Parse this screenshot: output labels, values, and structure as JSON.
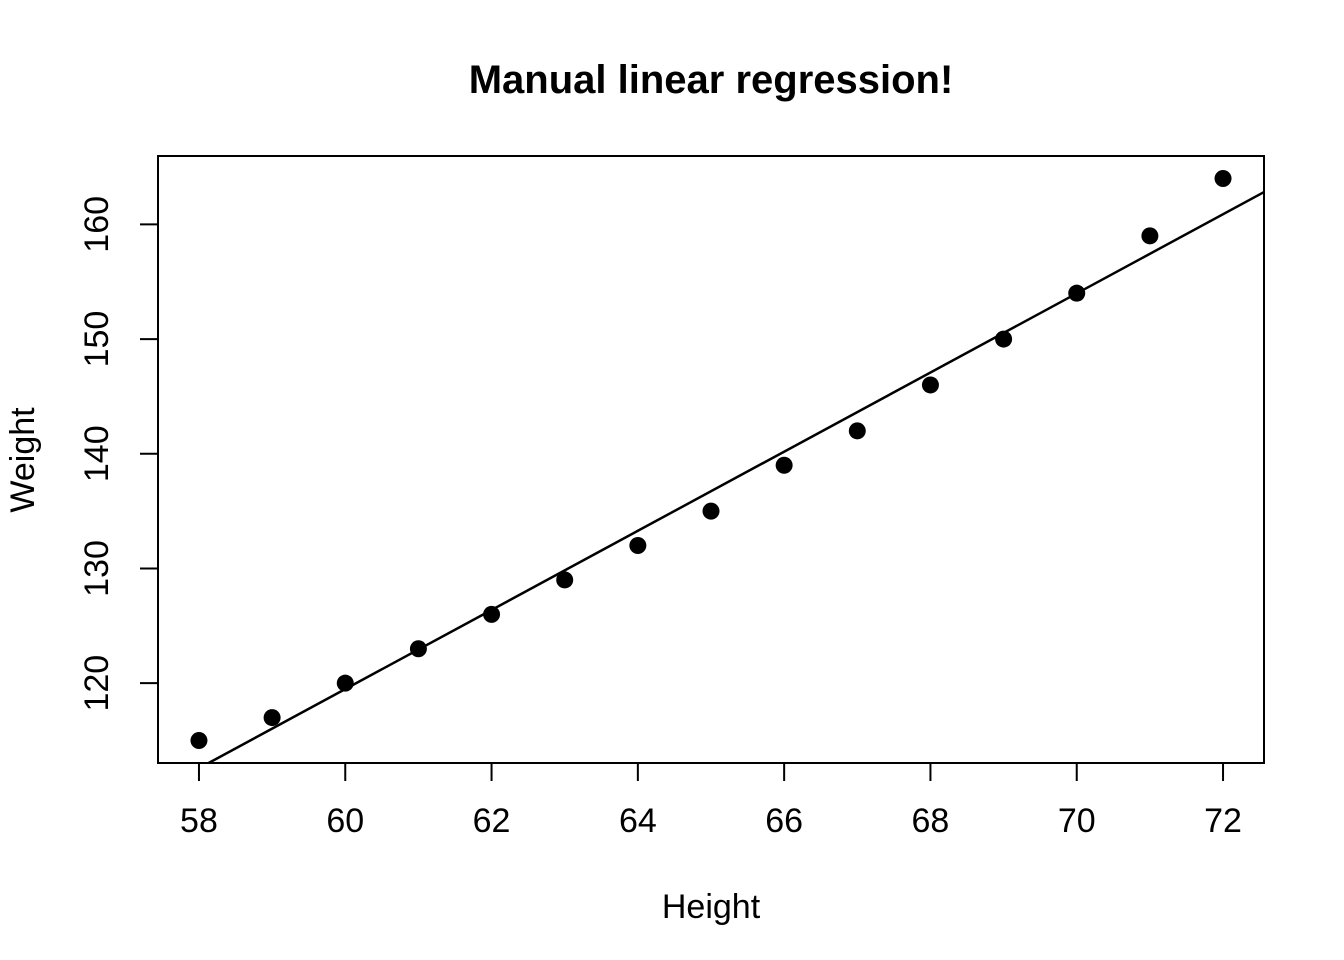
{
  "chart_data": {
    "type": "scatter",
    "title": "Manual linear regression!",
    "xlabel": "Height",
    "ylabel": "Weight",
    "x": [
      58,
      59,
      60,
      61,
      62,
      63,
      64,
      65,
      66,
      67,
      68,
      69,
      70,
      71,
      72
    ],
    "y": [
      115,
      117,
      120,
      123,
      126,
      129,
      132,
      135,
      139,
      142,
      146,
      150,
      154,
      159,
      164
    ],
    "xlim": [
      57.44,
      72.56
    ],
    "ylim": [
      113.04,
      165.96
    ],
    "x_ticks": [
      58,
      60,
      62,
      64,
      66,
      68,
      70,
      72
    ],
    "y_ticks": [
      120,
      130,
      140,
      150,
      160
    ],
    "regression_line": {
      "slope": 3.45,
      "intercept": -87.517
    },
    "grid": false,
    "legend": "none",
    "point_color": "#000000",
    "line_color": "#000000",
    "axis_color": "#000000",
    "background_color": "#ffffff"
  }
}
